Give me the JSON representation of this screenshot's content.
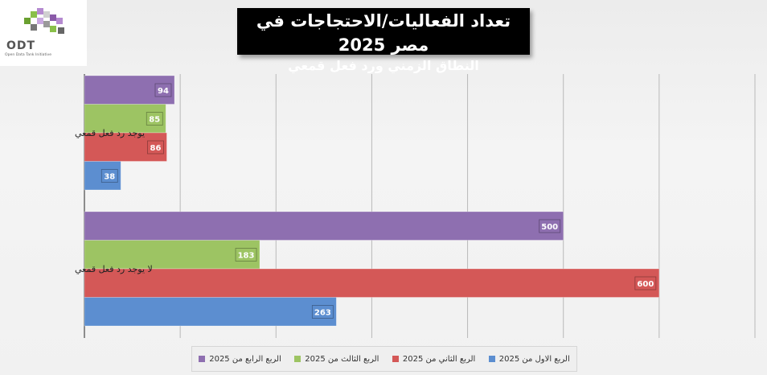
{
  "logo": {
    "name": "ODT",
    "tagline": "Open Data Tank Initiative"
  },
  "title": {
    "main": "تعداد الفعاليات/الاحتجاجات في مصر 2025",
    "sub": "النطاق الزمني ورد فعل قمعي"
  },
  "chart_data": {
    "type": "bar",
    "orientation": "horizontal",
    "categories": [
      "يوجد رد فعل قمعي",
      "لا يوجد رد فعل قمعي"
    ],
    "series": [
      {
        "name": "الربع الرابع من 2025",
        "color": "#8e6fb0",
        "values": [
          94,
          500
        ]
      },
      {
        "name": "الربع الثالث من 2025",
        "color": "#9dc463",
        "values": [
          85,
          183
        ]
      },
      {
        "name": "الربع الثاني من 2025",
        "color": "#d45857",
        "values": [
          86,
          600
        ]
      },
      {
        "name": "الربع الاول من 2025",
        "color": "#5c8ed0",
        "values": [
          38,
          263
        ]
      }
    ],
    "xlim": [
      0,
      700
    ],
    "grid": true,
    "legend_position": "bottom"
  }
}
